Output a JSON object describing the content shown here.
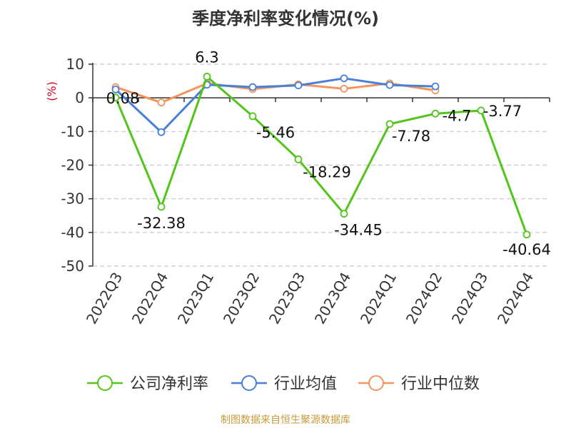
{
  "chart_data": {
    "type": "line",
    "title": "季度净利率变化情况(%)",
    "ylabel": "(%)",
    "xlabel": "",
    "categories": [
      "2022Q3",
      "2022Q4",
      "2023Q1",
      "2023Q2",
      "2023Q3",
      "2023Q4",
      "2024Q1",
      "2024Q2",
      "2024Q3",
      "2024Q4"
    ],
    "ylim": [
      -50,
      10
    ],
    "yticks": [
      10,
      0,
      -10,
      -20,
      -30,
      -40,
      -50
    ],
    "grid": true,
    "legend_position": "bottom",
    "series": [
      {
        "name": "公司净利率",
        "color": "#52c41a",
        "values": [
          0.08,
          -32.38,
          6.3,
          -5.46,
          -18.29,
          -34.45,
          -7.78,
          -4.7,
          -3.77,
          -40.64
        ],
        "labels": [
          "0.08",
          "-32.38",
          "6.3",
          "-5.46",
          "-18.29",
          "-34.45",
          "-7.78",
          "-4.7",
          "-3.77",
          "-40.64"
        ]
      },
      {
        "name": "行业均值",
        "color": "#4a7fd8",
        "values": [
          2.5,
          -10.2,
          3.9,
          3.2,
          3.7,
          5.8,
          3.8,
          3.4,
          null,
          null
        ]
      },
      {
        "name": "行业中位数",
        "color": "#f5935a",
        "values": [
          3.2,
          -1.4,
          4.3,
          2.6,
          4.0,
          2.7,
          4.3,
          2.2,
          null,
          null
        ]
      }
    ]
  },
  "source": "制图数据来自恒生聚源数据库"
}
